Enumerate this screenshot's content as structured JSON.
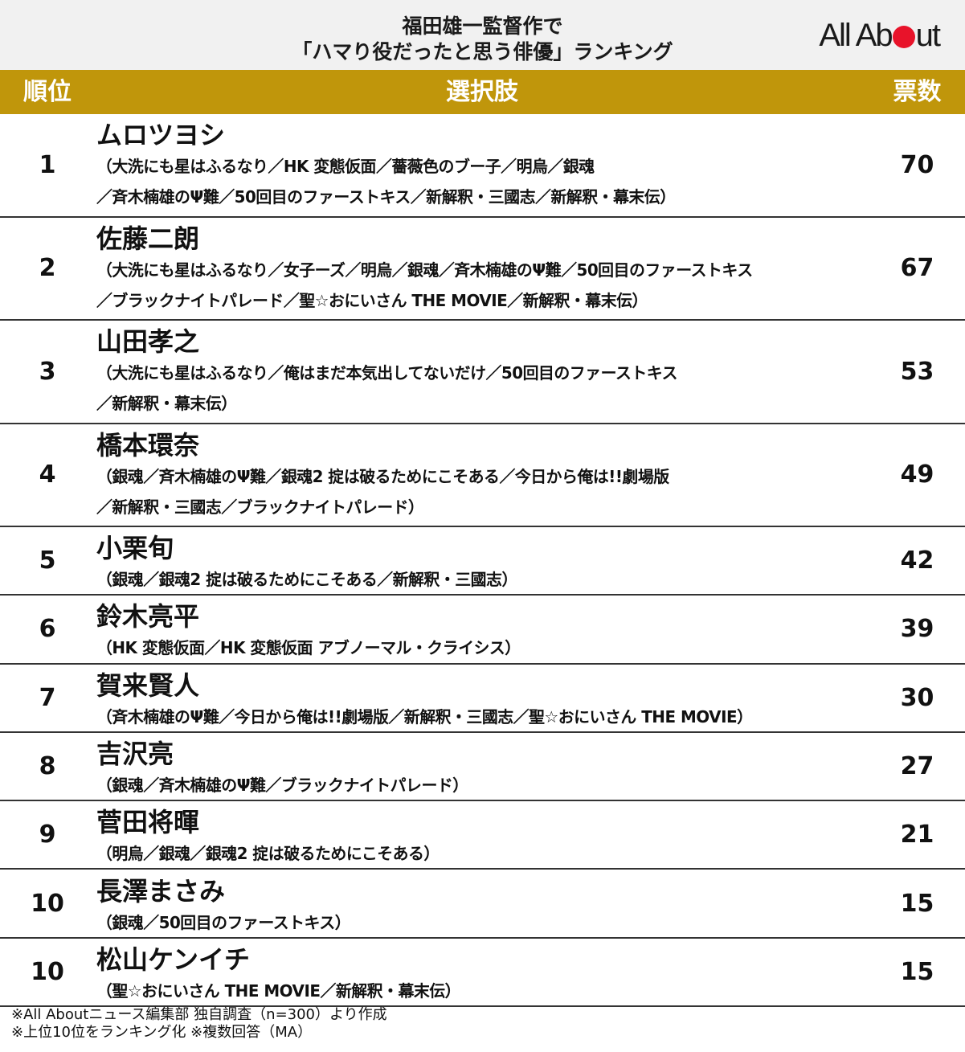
{
  "header": {
    "title_line1": "福田雄一監督作で",
    "title_line2": "「ハマり役だったと思う俳優」ランキング",
    "logo_text_left": "All Ab",
    "logo_text_right": "ut"
  },
  "colors": {
    "header_bg": "#c0960b",
    "title_bg": "#f1f1f1",
    "logo_accent": "#e8132a"
  },
  "chart_data": {
    "type": "table",
    "columns": [
      "順位",
      "選択肢",
      "票数"
    ],
    "rows": [
      {
        "rank": "1",
        "name": "ムロツヨシ",
        "works": [
          "（大洗にも星はふるなり／HK 変態仮面／薔薇色のブー子／明烏／銀魂",
          "／斉木楠雄のΨ難／50回目のファーストキス／新解釈・三國志／新解釈・幕末伝）"
        ],
        "votes": 70
      },
      {
        "rank": "2",
        "name": "佐藤二朗",
        "works": [
          "（大洗にも星はふるなり／女子ーズ／明烏／銀魂／斉木楠雄のΨ難／50回目のファーストキス",
          "／ブラックナイトパレード／聖☆おにいさん THE MOVIE／新解釈・幕末伝）"
        ],
        "votes": 67
      },
      {
        "rank": "3",
        "name": "山田孝之",
        "works": [
          "（大洗にも星はふるなり／俺はまだ本気出してないだけ／50回目のファーストキス",
          "／新解釈・幕末伝）"
        ],
        "votes": 53
      },
      {
        "rank": "4",
        "name": "橋本環奈",
        "works": [
          "（銀魂／斉木楠雄のΨ難／銀魂2 掟は破るためにこそある／今日から俺は!!劇場版",
          "／新解釈・三國志／ブラックナイトパレード）"
        ],
        "votes": 49
      },
      {
        "rank": "5",
        "name": "小栗旬",
        "works": [
          "（銀魂／銀魂2 掟は破るためにこそある／新解釈・三國志）"
        ],
        "votes": 42
      },
      {
        "rank": "6",
        "name": "鈴木亮平",
        "works": [
          "（HK 変態仮面／HK 変態仮面 アブノーマル・クライシス）"
        ],
        "votes": 39
      },
      {
        "rank": "7",
        "name": "賀来賢人",
        "works": [
          "（斉木楠雄のΨ難／今日から俺は!!劇場版／新解釈・三國志／聖☆おにいさん THE MOVIE）"
        ],
        "votes": 30
      },
      {
        "rank": "8",
        "name": "吉沢亮",
        "works": [
          "（銀魂／斉木楠雄のΨ難／ブラックナイトパレード）"
        ],
        "votes": 27
      },
      {
        "rank": "9",
        "name": "菅田将暉",
        "works": [
          "（明烏／銀魂／銀魂2 掟は破るためにこそある）"
        ],
        "votes": 21
      },
      {
        "rank": "10",
        "name": "長澤まさみ",
        "works": [
          "（銀魂／50回目のファーストキス）"
        ],
        "votes": 15
      },
      {
        "rank": "10",
        "name": "松山ケンイチ",
        "works": [
          "（聖☆おにいさん THE MOVIE／新解釈・幕末伝）"
        ],
        "votes": 15
      }
    ]
  },
  "footer": {
    "note1": "※All Aboutニュース編集部 独自調査（n=300）より作成",
    "note2": "※上位10位をランキング化 ※複数回答（MA）"
  }
}
